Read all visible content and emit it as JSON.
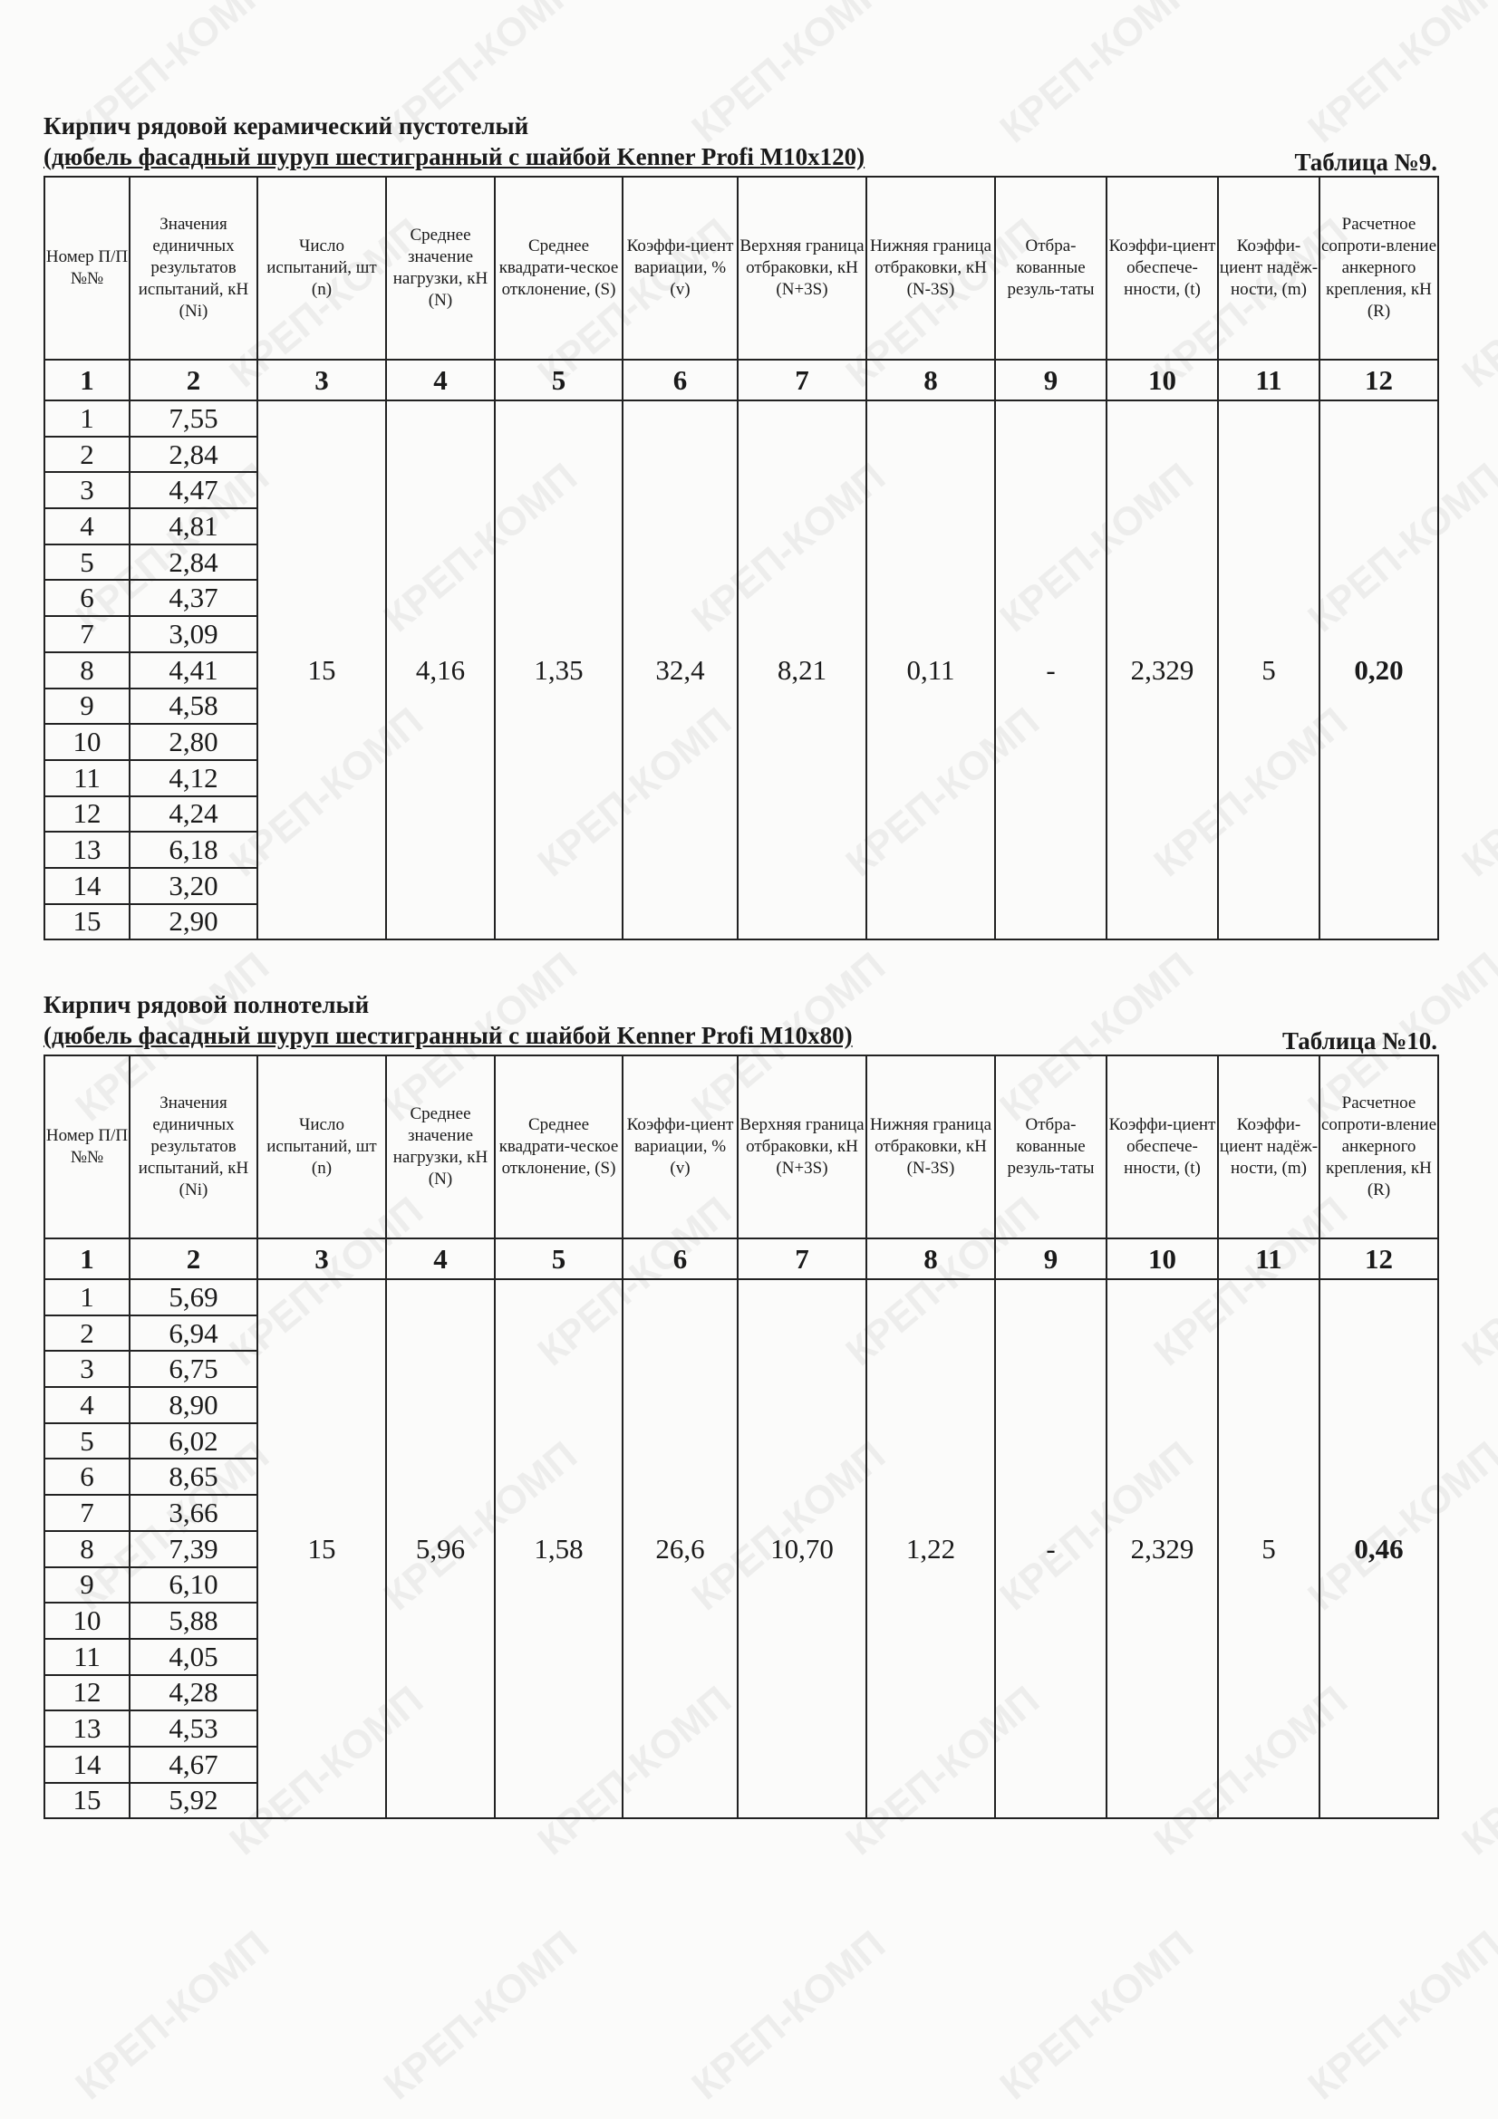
{
  "watermark": "КРЕП-КОМП",
  "headers": [
    "Номер П/П №№",
    "Значения единичных результатов испытаний, кН (Ni)",
    "Число испытаний, шт (n)",
    "Среднее значение нагрузки, кН (N)",
    "Среднее квадрати-ческое отклонение, (S)",
    "Коэффи-циент вариации, % (v)",
    "Верхняя граница отбраковки, кН (N+3S)",
    "Нижняя граница отбраковки, кН (N-3S)",
    "Отбра-кованные резуль-таты",
    "Коэффи-циент обеспече-нности, (t)",
    "Коэффи-циент надёж-ности, (m)",
    "Расчетное сопроти-вление анкерного крепления, кН (R)"
  ],
  "column_numbers": [
    "1",
    "2",
    "3",
    "4",
    "5",
    "6",
    "7",
    "8",
    "9",
    "10",
    "11",
    "12"
  ],
  "tables": [
    {
      "title": "Кирпич рядовой керамический пустотелый",
      "subtitle": "(дюбель фасадный шуруп шестигранный с шайбой Kenner Profi M10x120)",
      "table_label": "Таблица №9.",
      "rows": [
        [
          "1",
          "7,55"
        ],
        [
          "2",
          "2,84"
        ],
        [
          "3",
          "4,47"
        ],
        [
          "4",
          "4,81"
        ],
        [
          "5",
          "2,84"
        ],
        [
          "6",
          "4,37"
        ],
        [
          "7",
          "3,09"
        ],
        [
          "8",
          "4,41"
        ],
        [
          "9",
          "4,58"
        ],
        [
          "10",
          "2,80"
        ],
        [
          "11",
          "4,12"
        ],
        [
          "12",
          "4,24"
        ],
        [
          "13",
          "6,18"
        ],
        [
          "14",
          "3,20"
        ],
        [
          "15",
          "2,90"
        ]
      ],
      "summary": [
        "15",
        "4,16",
        "1,35",
        "32,4",
        "8,21",
        "0,11",
        "-",
        "2,329",
        "5",
        "0,20"
      ]
    },
    {
      "title": "Кирпич рядовой полнотелый",
      "subtitle": "(дюбель фасадный шуруп шестигранный с шайбой Kenner Profi M10x80)",
      "table_label": "Таблица №10.",
      "rows": [
        [
          "1",
          "5,69"
        ],
        [
          "2",
          "6,94"
        ],
        [
          "3",
          "6,75"
        ],
        [
          "4",
          "8,90"
        ],
        [
          "5",
          "6,02"
        ],
        [
          "6",
          "8,65"
        ],
        [
          "7",
          "3,66"
        ],
        [
          "8",
          "7,39"
        ],
        [
          "9",
          "6,10"
        ],
        [
          "10",
          "5,88"
        ],
        [
          "11",
          "4,05"
        ],
        [
          "12",
          "4,28"
        ],
        [
          "13",
          "4,53"
        ],
        [
          "14",
          "4,67"
        ],
        [
          "15",
          "5,92"
        ]
      ],
      "summary": [
        "15",
        "5,96",
        "1,58",
        "26,6",
        "10,70",
        "1,22",
        "-",
        "2,329",
        "5",
        "0,46"
      ]
    }
  ]
}
